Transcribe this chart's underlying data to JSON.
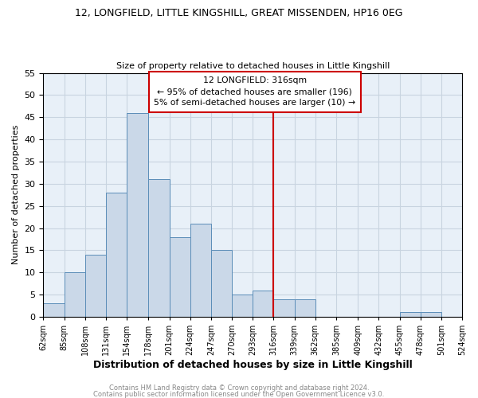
{
  "title": "12, LONGFIELD, LITTLE KINGSHILL, GREAT MISSENDEN, HP16 0EG",
  "subtitle": "Size of property relative to detached houses in Little Kingshill",
  "xlabel": "Distribution of detached houses by size in Little Kingshill",
  "ylabel": "Number of detached properties",
  "bin_edges": [
    62,
    85,
    108,
    131,
    154,
    178,
    201,
    224,
    247,
    270,
    293,
    316,
    339,
    362,
    385,
    409,
    432,
    455,
    478,
    501,
    524
  ],
  "bin_counts": [
    3,
    10,
    14,
    28,
    46,
    31,
    18,
    21,
    15,
    5,
    6,
    4,
    4,
    0,
    0,
    0,
    0,
    1,
    1,
    0
  ],
  "tick_labels": [
    "62sqm",
    "85sqm",
    "108sqm",
    "131sqm",
    "154sqm",
    "178sqm",
    "201sqm",
    "224sqm",
    "247sqm",
    "270sqm",
    "293sqm",
    "316sqm",
    "339sqm",
    "362sqm",
    "385sqm",
    "409sqm",
    "432sqm",
    "455sqm",
    "478sqm",
    "501sqm",
    "524sqm"
  ],
  "vline_x": 316,
  "vline_color": "#cc0000",
  "bar_facecolor": "#cad8e8",
  "bar_edgecolor": "#5b8db8",
  "annotation_text": "12 LONGFIELD: 316sqm\n← 95% of detached houses are smaller (196)\n5% of semi-detached houses are larger (10) →",
  "annotation_box_edgecolor": "#cc0000",
  "ylim": [
    0,
    55
  ],
  "yticks": [
    0,
    5,
    10,
    15,
    20,
    25,
    30,
    35,
    40,
    45,
    50,
    55
  ],
  "grid_color": "#c8d4e0",
  "background_color": "#e8f0f8",
  "footer_line1": "Contains HM Land Registry data © Crown copyright and database right 2024.",
  "footer_line2": "Contains public sector information licensed under the Open Government Licence v3.0."
}
